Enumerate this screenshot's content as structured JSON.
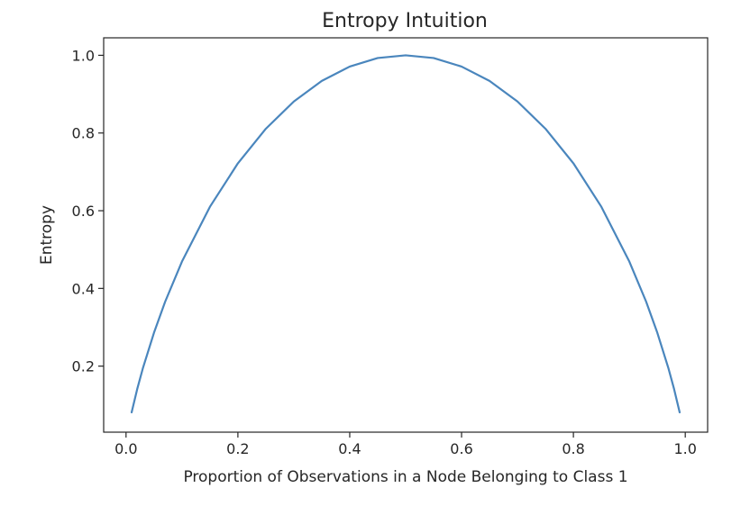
{
  "chart_data": {
    "type": "line",
    "title": "Entropy Intuition",
    "xlabel": "Proportion of Observations in a Node Belonging to Class 1",
    "ylabel": "Entropy",
    "xlim": [
      -0.04,
      1.04
    ],
    "ylim": [
      0.03,
      1.045
    ],
    "xticks": [
      0.0,
      0.2,
      0.4,
      0.6,
      0.8,
      1.0
    ],
    "xtick_labels": [
      "0.0",
      "0.2",
      "0.4",
      "0.6",
      "0.8",
      "1.0"
    ],
    "yticks": [
      0.2,
      0.4,
      0.6,
      0.8,
      1.0
    ],
    "ytick_labels": [
      "0.2",
      "0.4",
      "0.6",
      "0.8",
      "1.0"
    ],
    "grid": false,
    "legend": "none",
    "series": [
      {
        "color": "#4a86bd",
        "x": [
          0.01,
          0.02,
          0.03,
          0.05,
          0.07,
          0.1,
          0.15,
          0.2,
          0.25,
          0.3,
          0.35,
          0.4,
          0.45,
          0.5,
          0.55,
          0.6,
          0.65,
          0.7,
          0.75,
          0.8,
          0.85,
          0.9,
          0.93,
          0.95,
          0.97,
          0.98,
          0.99
        ],
        "y": [
          0.081,
          0.141,
          0.194,
          0.286,
          0.366,
          0.469,
          0.61,
          0.722,
          0.811,
          0.881,
          0.934,
          0.971,
          0.993,
          1.0,
          0.993,
          0.971,
          0.934,
          0.881,
          0.811,
          0.722,
          0.61,
          0.469,
          0.366,
          0.286,
          0.194,
          0.141,
          0.081
        ]
      }
    ]
  }
}
